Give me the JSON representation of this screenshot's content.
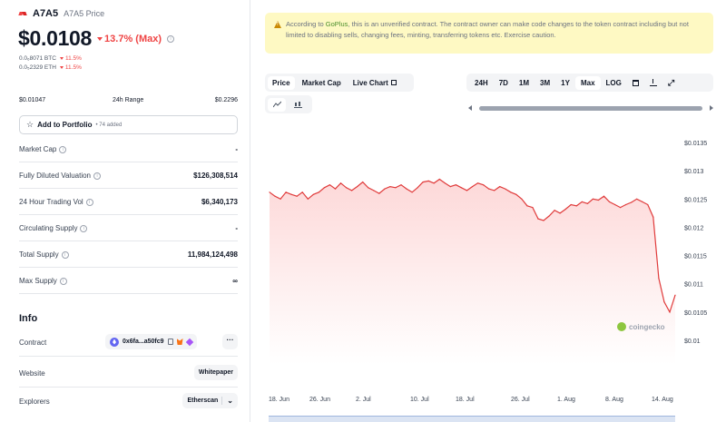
{
  "coin": {
    "name": "A7A5",
    "price_label": "A7A5 Price",
    "price": "$0.0108",
    "change": "13.7% (Max)"
  },
  "sub_prices": [
    {
      "value": "0.0₆8071 BTC",
      "change": "11.5%"
    },
    {
      "value": "0.0₅2329 ETH",
      "change": "11.5%"
    }
  ],
  "range": {
    "low": "$0.01047",
    "label": "24h Range",
    "high": "$0.2296"
  },
  "portfolio": {
    "label": "Add to Portfolio",
    "added": "• 74 added"
  },
  "stats": [
    {
      "label": "Market Cap",
      "value": "-"
    },
    {
      "label": "Fully Diluted Valuation",
      "value": "$126,308,514"
    },
    {
      "label": "24 Hour Trading Vol",
      "value": "$6,340,173"
    },
    {
      "label": "Circulating Supply",
      "value": "-"
    },
    {
      "label": "Total Supply",
      "value": "11,984,124,498"
    },
    {
      "label": "Max Supply",
      "value": "∞"
    }
  ],
  "info": {
    "title": "Info",
    "contract_label": "Contract",
    "contract_value": "0x6fa...a50fc9",
    "contract_more": "···",
    "website_label": "Website",
    "website_value": "Whitepaper",
    "explorers_label": "Explorers",
    "explorers_value": "Etherscan"
  },
  "alert": {
    "prefix": "According to",
    "link": "GoPlus",
    "text": ", this is an unverified contract. The contract owner can make code changes to the token contract including but not limited to disabling sells, changing fees, minting, transferring tokens etc. Exercise caution."
  },
  "tabs": [
    "Price",
    "Market Cap",
    "Live Chart"
  ],
  "ranges": [
    "24H",
    "7D",
    "1M",
    "3M",
    "1Y",
    "Max",
    "LOG"
  ],
  "watermark": "coingecko",
  "colors": {
    "negative": "#ef4444",
    "line": "#e03b3b",
    "fill": "#fdd8d8",
    "warning_bg": "#fef9c3"
  },
  "chart_data": {
    "type": "area",
    "y_ticks": [
      "$0.0135",
      "$0.013",
      "$0.0125",
      "$0.012",
      "$0.0115",
      "$0.011",
      "$0.0105",
      "$0.01"
    ],
    "x_ticks": [
      "18. Jun",
      "26. Jun",
      "2. Jul",
      "10. Jul",
      "18. Jul",
      "26. Jul",
      "1. Aug",
      "8. Aug",
      "14. Aug"
    ],
    "ylim": [
      0.01,
      0.0135
    ],
    "series": [
      {
        "values": [
          0.01262,
          0.01255,
          0.0125,
          0.01262,
          0.01258,
          0.01255,
          0.01262,
          0.0125,
          0.01258,
          0.01262,
          0.0127,
          0.01275,
          0.01268,
          0.01278,
          0.0127,
          0.01265,
          0.01272,
          0.0128,
          0.0127,
          0.01265,
          0.0126,
          0.01268,
          0.01272,
          0.0127,
          0.01275,
          0.01268,
          0.01262,
          0.0127,
          0.0128,
          0.01282,
          0.01278,
          0.01285,
          0.01278,
          0.01272,
          0.01275,
          0.0127,
          0.01265,
          0.01272,
          0.01278,
          0.01275,
          0.01268,
          0.01265,
          0.01272,
          0.01268,
          0.01262,
          0.01258,
          0.0125,
          0.01238,
          0.01235,
          0.01215,
          0.01212,
          0.0122,
          0.0123,
          0.01225,
          0.01232,
          0.0124,
          0.01238,
          0.01245,
          0.01242,
          0.0125,
          0.01248,
          0.01255,
          0.01245,
          0.0124,
          0.01235,
          0.0124,
          0.01244,
          0.0125,
          0.01245,
          0.0124,
          0.01218,
          0.0111,
          0.01068,
          0.0105,
          0.0108
        ]
      }
    ]
  }
}
